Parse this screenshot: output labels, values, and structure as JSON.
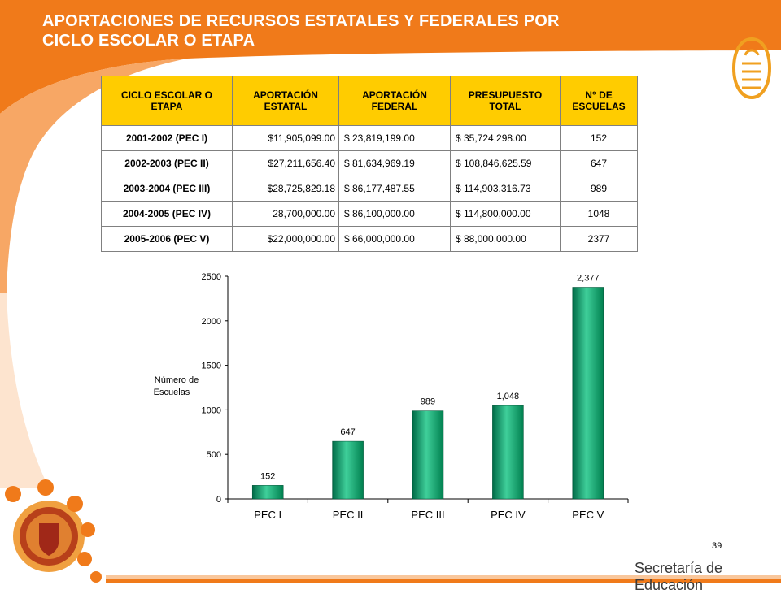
{
  "title_lines": [
    "APORTACIONES DE RECURSOS ESTATALES Y FEDERALES POR",
    "CICLO ESCOLAR O ETAPA"
  ],
  "colors": {
    "orange": "#f07a1a",
    "header_yellow": "#ffcc00",
    "bar_green": "#009966"
  },
  "table": {
    "headers": [
      "CICLO ESCOLAR O ETAPA",
      "APORTACIÓN ESTATAL",
      "APORTACIÓN FEDERAL",
      "PRESUPUESTO TOTAL",
      "N° DE ESCUELAS"
    ],
    "rows": [
      [
        "2001-2002 (PEC I)",
        "$11,905,099.00",
        "$ 23,819,199.00",
        "$  35,724,298.00",
        "152"
      ],
      [
        "2002-2003 (PEC II)",
        "$27,211,656.40",
        "$ 81,634,969.19",
        "$ 108,846,625.59",
        "647"
      ],
      [
        "2003-2004 (PEC III)",
        "$28,725,829.18",
        "$ 86,177,487.55",
        "$ 114,903,316.73",
        "989"
      ],
      [
        "2004-2005 (PEC IV)",
        "28,700,000.00",
        "$ 86,100,000.00",
        "$ 114,800,000.00",
        "1048"
      ],
      [
        "2005-2006 (PEC V)",
        "$22,000,000.00",
        "$ 66,000,000.00",
        "$  88,000,000.00",
        "2377"
      ]
    ]
  },
  "chart_data": {
    "type": "bar",
    "categories": [
      "PEC I",
      "PEC II",
      "PEC III",
      "PEC IV",
      "PEC V"
    ],
    "values": [
      152,
      647,
      989,
      1048,
      2377
    ],
    "data_labels": [
      "152",
      "647",
      "989",
      "1,048",
      "2,377"
    ],
    "ylabel_lines": [
      "Número de",
      "Escuelas"
    ],
    "yticks": [
      "0",
      "500",
      "1000",
      "1500",
      "2000",
      "2500"
    ],
    "ylim": [
      0,
      2500
    ],
    "grid": false,
    "legend": "none"
  },
  "page_number": "39",
  "footer": "Secretaría de Educación",
  "logo": {
    "icon": "stylized-spiral-logo-icon"
  },
  "seal": {
    "icon": "state-coat-of-arms-seal-icon"
  }
}
